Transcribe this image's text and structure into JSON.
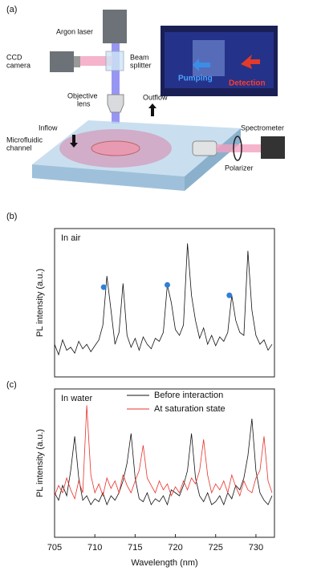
{
  "diagram": {
    "panel_label": "(a)",
    "argon_laser": "Argon laser",
    "ccd_camera": [
      "CCD",
      "camera"
    ],
    "beam_splitter": [
      "Beam",
      "splitter"
    ],
    "objective_lens": [
      "Objective",
      "lens"
    ],
    "outflow": "Outflow",
    "inflow": "Inflow",
    "microfluidic_channel": [
      "Microfluidic",
      "channel"
    ],
    "spectrometer": "Spectrometer",
    "polarizer": "Polarizer",
    "pumping": "Pumping",
    "detection": "Detection"
  },
  "chart_data": [
    {
      "type": "line",
      "panel_label": "(b)",
      "annotation": "In air",
      "y_label": "PL intensity (a.u.)",
      "x": [
        705,
        705.5,
        706,
        706.5,
        707,
        707.5,
        708,
        708.5,
        709,
        709.5,
        710,
        710.5,
        711,
        711.5,
        712,
        712.5,
        713,
        713.5,
        714,
        714.5,
        715,
        715.5,
        716,
        716.5,
        717,
        717.5,
        718,
        718.5,
        719,
        719.5,
        720,
        720.5,
        721,
        721.5,
        722,
        722.5,
        723,
        723.5,
        724,
        724.5,
        725,
        725.5,
        726,
        726.5,
        727,
        727.5,
        728,
        728.5,
        729,
        729.5,
        730,
        730.5,
        731,
        731.5,
        732
      ],
      "series": [
        {
          "color": "#111111",
          "values": [
            22,
            15,
            25,
            18,
            20,
            16,
            24,
            19,
            22,
            17,
            21,
            25,
            35,
            68,
            45,
            22,
            30,
            63,
            28,
            20,
            26,
            18,
            27,
            22,
            19,
            26,
            24,
            30,
            62,
            50,
            32,
            28,
            35,
            90,
            55,
            38,
            26,
            33,
            22,
            28,
            21,
            27,
            24,
            30,
            55,
            38,
            30,
            28,
            85,
            45,
            28,
            22,
            25,
            18,
            22
          ]
        }
      ],
      "markers": {
        "x": [
          711.1,
          719.0,
          726.7
        ],
        "y": [
          60.5,
          62,
          55
        ],
        "color": "#2f7fd8"
      },
      "xlim": [
        705,
        732.3
      ],
      "ylim": [
        0,
        100
      ]
    },
    {
      "type": "line",
      "panel_label": "(c)",
      "annotation": "In water",
      "y_label": "PL intensity (a.u.)",
      "x_label": "Wavelength (nm)",
      "x": [
        705,
        705.5,
        706,
        706.5,
        707,
        707.5,
        708,
        708.5,
        709,
        709.5,
        710,
        710.5,
        711,
        711.5,
        712,
        712.5,
        713,
        713.5,
        714,
        714.5,
        715,
        715.5,
        716,
        716.5,
        717,
        717.5,
        718,
        718.5,
        719,
        719.5,
        720,
        720.5,
        721,
        721.5,
        722,
        722.5,
        723,
        723.5,
        724,
        724.5,
        725,
        725.5,
        726,
        726.5,
        727,
        727.5,
        728,
        728.5,
        729,
        729.5,
        730,
        730.5,
        731,
        731.5,
        732
      ],
      "series": [
        {
          "name": "Before interaction",
          "color": "#111111",
          "values": [
            30,
            25,
            35,
            28,
            45,
            68,
            40,
            25,
            28,
            22,
            26,
            24,
            30,
            22,
            28,
            25,
            30,
            38,
            50,
            70,
            40,
            26,
            24,
            30,
            22,
            26,
            24,
            28,
            22,
            32,
            30,
            28,
            35,
            45,
            70,
            40,
            28,
            24,
            30,
            22,
            24,
            28,
            22,
            30,
            26,
            35,
            32,
            40,
            55,
            80,
            45,
            30,
            25,
            22,
            28
          ]
        },
        {
          "name": "At saturation state",
          "color": "#e8312a",
          "values": [
            28,
            35,
            30,
            40,
            32,
            26,
            38,
            30,
            89,
            42,
            30,
            36,
            28,
            40,
            33,
            38,
            30,
            42,
            35,
            30,
            38,
            45,
            62,
            40,
            35,
            30,
            38,
            32,
            36,
            28,
            34,
            30,
            38,
            32,
            40,
            36,
            45,
            66,
            42,
            30,
            36,
            32,
            38,
            30,
            42,
            34,
            28,
            38,
            32,
            30,
            40,
            45,
            68,
            38,
            30
          ]
        }
      ],
      "xlim": [
        705,
        732.3
      ],
      "ylim": [
        0,
        100
      ],
      "xticks": [
        705,
        710,
        715,
        720,
        725,
        730
      ]
    }
  ]
}
